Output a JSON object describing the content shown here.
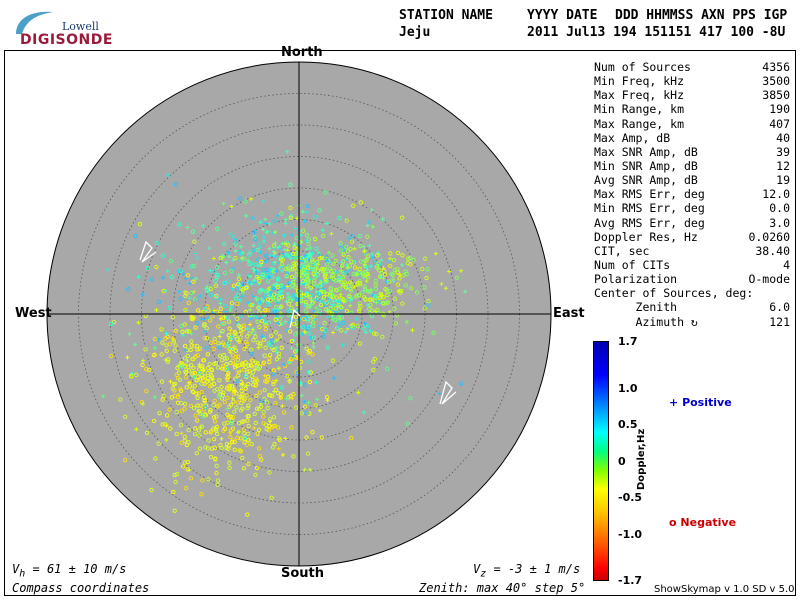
{
  "logo": {
    "line1": "Lowell",
    "line2": "DIGISONDE"
  },
  "header": {
    "row1": [
      "STATION NAME",
      "YYYY DATE",
      "DDD HHMMSS AXN PPS IGP"
    ],
    "row2": [
      "Jeju",
      "2011 Jul13 194 151151 417 100 -8U"
    ]
  },
  "compass": {
    "north": "North",
    "south": "South",
    "east": "East",
    "west": "West"
  },
  "stats": [
    {
      "label": "Num of Sources",
      "value": "4356"
    },
    {
      "label": "Min Freq, kHz",
      "value": "3500"
    },
    {
      "label": "Max Freq, kHz",
      "value": "3850"
    },
    {
      "label": "Min Range, km",
      "value": "190"
    },
    {
      "label": "Max Range, km",
      "value": "407"
    },
    {
      "label": "Max Amp, dB",
      "value": "40"
    },
    {
      "label": "Max SNR Amp, dB",
      "value": "39"
    },
    {
      "label": "Min SNR Amp, dB",
      "value": "12"
    },
    {
      "label": "Avg SNR Amp, dB",
      "value": "19"
    },
    {
      "label": "Max RMS Err, deg",
      "value": "12.0"
    },
    {
      "label": "Min RMS Err, deg",
      "value": "0.0"
    },
    {
      "label": "Avg RMS Err, deg",
      "value": "3.0"
    },
    {
      "label": "Doppler Res, Hz",
      "value": "0.0260"
    },
    {
      "label": "CIT, sec",
      "value": "38.40"
    },
    {
      "label": "Num of CITs",
      "value": "4"
    },
    {
      "label": "Polarization",
      "value": "O-mode"
    },
    {
      "label": "Center of Sources, deg:",
      "value": ""
    },
    {
      "label": "      Zenith",
      "value": "6.0"
    },
    {
      "label": "      Azimuth ↻",
      "value": "121"
    }
  ],
  "colorbar": {
    "title": "Doppler,Hz",
    "ticks": [
      "1.7",
      "1.0",
      "0.5",
      "0",
      "-0.5",
      "-1.0",
      "-1.7"
    ]
  },
  "legend": {
    "positive_symbol": "+",
    "positive_label": "Positive",
    "positive_color": "#0000cc",
    "negative_symbol": "o",
    "negative_label": "Negative",
    "negative_color": "#cc0000"
  },
  "footer": {
    "vh_main": "V",
    "vh_sub": "h",
    "vh_value": " = 61 ± 10 m/s",
    "vz_main": "V",
    "vz_sub": "z",
    "vz_value": " = -3 ± 1 m/s",
    "coords": "Compass coordinates",
    "zenith": "Zenith: max 40°  step 5°",
    "version": "ShowSkymap v 1.0   SD v 5.0"
  },
  "plot": {
    "background": "#a8a8a8",
    "zenith_max_deg": 40,
    "step_deg": 5
  }
}
